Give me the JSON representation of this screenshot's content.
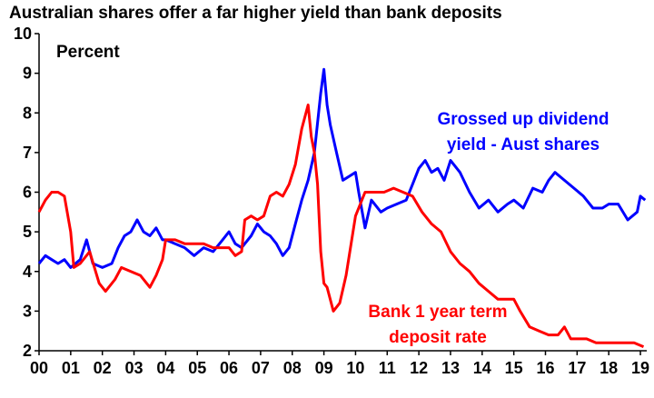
{
  "chart_data": {
    "type": "line",
    "title": "Australian shares offer a far higher yield than bank deposits",
    "ylabel": "Percent",
    "xlabel": "",
    "ylim": [
      2,
      10
    ],
    "xlim": [
      2000,
      2019.2
    ],
    "yticks": [
      "2",
      "3",
      "4",
      "5",
      "6",
      "7",
      "8",
      "9",
      "10"
    ],
    "xticks": [
      "00",
      "01",
      "02",
      "03",
      "04",
      "05",
      "06",
      "07",
      "08",
      "09",
      "10",
      "11",
      "12",
      "13",
      "14",
      "15",
      "16",
      "17",
      "18",
      "19"
    ],
    "grid": false,
    "colors": {
      "dividend": "#0000ff",
      "deposit": "#ff0000"
    },
    "annotations": {
      "dividend": [
        "Grossed up dividend",
        "yield - Aust shares"
      ],
      "deposit": [
        "Bank 1 year term",
        "deposit rate"
      ]
    },
    "series": [
      {
        "name": "Grossed up dividend yield - Aust shares",
        "color": "#0000ff",
        "x": [
          2000.0,
          2000.2,
          2000.4,
          2000.6,
          2000.8,
          2001.0,
          2001.3,
          2001.5,
          2001.7,
          2002.0,
          2002.3,
          2002.5,
          2002.7,
          2002.9,
          2003.1,
          2003.3,
          2003.5,
          2003.7,
          2003.9,
          2004.0,
          2004.3,
          2004.6,
          2004.9,
          2005.2,
          2005.5,
          2005.8,
          2006.0,
          2006.2,
          2006.4,
          2006.7,
          2006.9,
          2007.1,
          2007.3,
          2007.5,
          2007.7,
          2007.9,
          2008.1,
          2008.3,
          2008.5,
          2008.7,
          2008.9,
          2009.0,
          2009.1,
          2009.2,
          2009.4,
          2009.6,
          2009.8,
          2010.0,
          2010.1,
          2010.3,
          2010.5,
          2010.8,
          2011.0,
          2011.3,
          2011.6,
          2011.8,
          2012.0,
          2012.2,
          2012.4,
          2012.6,
          2012.8,
          2013.0,
          2013.3,
          2013.6,
          2013.9,
          2014.2,
          2014.5,
          2014.8,
          2015.0,
          2015.3,
          2015.6,
          2015.9,
          2016.1,
          2016.3,
          2016.6,
          2016.9,
          2017.2,
          2017.5,
          2017.8,
          2018.0,
          2018.3,
          2018.6,
          2018.9,
          2019.0,
          2019.15
        ],
        "values": [
          4.2,
          4.4,
          4.3,
          4.2,
          4.3,
          4.1,
          4.3,
          4.8,
          4.2,
          4.1,
          4.2,
          4.6,
          4.9,
          5.0,
          5.3,
          5.0,
          4.9,
          5.1,
          4.8,
          4.8,
          4.7,
          4.6,
          4.4,
          4.6,
          4.5,
          4.8,
          5.0,
          4.7,
          4.6,
          4.9,
          5.2,
          5.0,
          4.9,
          4.7,
          4.4,
          4.6,
          5.2,
          5.8,
          6.3,
          7.0,
          8.5,
          9.1,
          8.2,
          7.7,
          7.0,
          6.3,
          6.4,
          6.5,
          6.0,
          5.1,
          5.8,
          5.5,
          5.6,
          5.7,
          5.8,
          6.2,
          6.6,
          6.8,
          6.5,
          6.6,
          6.3,
          6.8,
          6.5,
          6.0,
          5.6,
          5.8,
          5.5,
          5.7,
          5.8,
          5.6,
          6.1,
          6.0,
          6.3,
          6.5,
          6.3,
          6.1,
          5.9,
          5.6,
          5.6,
          5.7,
          5.7,
          5.3,
          5.5,
          5.9,
          5.8
        ]
      },
      {
        "name": "Bank 1 year term deposit rate",
        "color": "#ff0000",
        "x": [
          2000.0,
          2000.2,
          2000.4,
          2000.6,
          2000.8,
          2001.0,
          2001.1,
          2001.3,
          2001.6,
          2001.9,
          2002.1,
          2002.4,
          2002.6,
          2002.9,
          2003.2,
          2003.5,
          2003.7,
          2003.9,
          2004.0,
          2004.3,
          2004.6,
          2004.9,
          2005.2,
          2005.5,
          2005.8,
          2006.0,
          2006.2,
          2006.4,
          2006.5,
          2006.7,
          2006.9,
          2007.1,
          2007.3,
          2007.5,
          2007.7,
          2007.9,
          2008.1,
          2008.3,
          2008.5,
          2008.6,
          2008.7,
          2008.8,
          2008.9,
          2009.0,
          2009.1,
          2009.3,
          2009.5,
          2009.7,
          2010.0,
          2010.3,
          2010.6,
          2010.9,
          2011.2,
          2011.5,
          2011.8,
          2012.1,
          2012.4,
          2012.7,
          2013.0,
          2013.3,
          2013.6,
          2013.9,
          2014.2,
          2014.5,
          2014.8,
          2015.0,
          2015.2,
          2015.5,
          2015.8,
          2016.1,
          2016.4,
          2016.6,
          2016.8,
          2017.0,
          2017.3,
          2017.6,
          2018.0,
          2018.4,
          2018.8,
          2019.1
        ],
        "values": [
          5.5,
          5.8,
          6.0,
          6.0,
          5.9,
          5.0,
          4.1,
          4.2,
          4.5,
          3.7,
          3.5,
          3.8,
          4.1,
          4.0,
          3.9,
          3.6,
          3.9,
          4.3,
          4.8,
          4.8,
          4.7,
          4.7,
          4.7,
          4.6,
          4.6,
          4.6,
          4.4,
          4.5,
          5.3,
          5.4,
          5.3,
          5.4,
          5.9,
          6.0,
          5.9,
          6.2,
          6.7,
          7.6,
          8.2,
          7.4,
          7.0,
          6.2,
          4.5,
          3.7,
          3.6,
          3.0,
          3.2,
          3.9,
          5.4,
          6.0,
          6.0,
          6.0,
          6.1,
          6.0,
          5.9,
          5.5,
          5.2,
          5.0,
          4.5,
          4.2,
          4.0,
          3.7,
          3.5,
          3.3,
          3.3,
          3.3,
          3.0,
          2.6,
          2.5,
          2.4,
          2.4,
          2.6,
          2.3,
          2.3,
          2.3,
          2.2,
          2.2,
          2.2,
          2.2,
          2.1
        ]
      }
    ]
  }
}
